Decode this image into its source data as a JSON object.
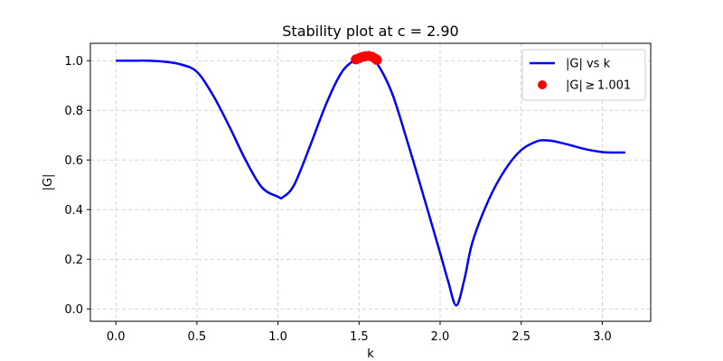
{
  "chart_data": {
    "type": "line",
    "title": "Stability plot at c = 2.90",
    "xlabel": "k",
    "ylabel": "|G|",
    "xlim": [
      -0.1571,
      3.2987
    ],
    "ylim": [
      -0.05,
      1.07
    ],
    "xticks": [
      0.0,
      0.5,
      1.0,
      1.5,
      2.0,
      2.5,
      3.0
    ],
    "xtick_labels": [
      "0.0",
      "0.5",
      "1.0",
      "1.5",
      "2.0",
      "2.5",
      "3.0"
    ],
    "yticks": [
      0.0,
      0.2,
      0.4,
      0.6,
      0.8,
      1.0
    ],
    "ytick_labels": [
      "0.0",
      "0.2",
      "0.4",
      "0.6",
      "0.8",
      "1.0"
    ],
    "grid": true,
    "legend_position": "upper right",
    "series": [
      {
        "name": "|G| vs k",
        "kind": "line",
        "color": "#0000ff",
        "x": [
          0.0,
          0.1,
          0.2,
          0.3,
          0.4,
          0.5,
          0.6,
          0.7,
          0.8,
          0.9,
          1.0,
          1.03,
          1.1,
          1.2,
          1.3,
          1.4,
          1.5,
          1.55,
          1.6,
          1.7,
          1.8,
          1.9,
          2.0,
          2.05,
          2.1,
          2.15,
          2.2,
          2.3,
          2.4,
          2.5,
          2.6,
          2.65,
          2.7,
          2.8,
          2.9,
          3.0,
          3.1,
          3.1416
        ],
        "y": [
          1.0,
          1.0,
          1.0,
          0.996,
          0.985,
          0.955,
          0.86,
          0.735,
          0.6,
          0.49,
          0.452,
          0.45,
          0.5,
          0.66,
          0.83,
          0.96,
          1.012,
          1.018,
          1.0,
          0.875,
          0.67,
          0.45,
          0.225,
          0.11,
          0.014,
          0.12,
          0.27,
          0.44,
          0.56,
          0.64,
          0.676,
          0.679,
          0.676,
          0.66,
          0.643,
          0.632,
          0.63,
          0.63
        ]
      },
      {
        "name": "|G| ≥ 1.001",
        "kind": "scatter",
        "color": "#ff0000",
        "x": [
          1.48,
          1.5,
          1.52,
          1.54,
          1.56,
          1.58,
          1.6,
          1.61
        ],
        "y": [
          1.005,
          1.01,
          1.015,
          1.018,
          1.019,
          1.016,
          1.008,
          1.003
        ]
      }
    ]
  }
}
